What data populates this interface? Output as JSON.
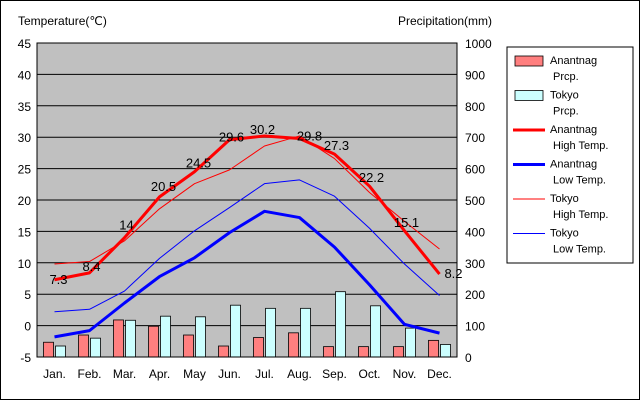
{
  "chart_data": {
    "type": "bar+line",
    "left_axis_label": "Temperature(℃)",
    "right_axis_label": "Precipitation(mm)",
    "left_ylim": [
      -5,
      45
    ],
    "left_ticks": [
      -5,
      0,
      5,
      10,
      15,
      20,
      25,
      30,
      35,
      40,
      45
    ],
    "right_ylim": [
      0,
      1000
    ],
    "right_ticks": [
      0,
      100,
      200,
      300,
      400,
      500,
      600,
      700,
      800,
      900,
      1000
    ],
    "categories": [
      "Jan.",
      "Feb.",
      "Mar.",
      "Apr.",
      "May",
      "Jun.",
      "Jul.",
      "Aug.",
      "Sep.",
      "Oct.",
      "Nov.",
      "Dec."
    ],
    "grid": true,
    "legend_position": "right",
    "bars": [
      {
        "name": "Anantnag Prcp.",
        "color": "#ff7f7f",
        "values": [
          47,
          70,
          118,
          98,
          70,
          35,
          62,
          77,
          33,
          33,
          33,
          53
        ]
      },
      {
        "name": "Tokyo Prcp.",
        "color": "#ccffff",
        "values": [
          35,
          60,
          117,
          130,
          128,
          165,
          155,
          155,
          208,
          163,
          92,
          40
        ]
      }
    ],
    "lines": [
      {
        "name": "Anantnag High Temp.",
        "color": "#ff0000",
        "width": 3,
        "values": [
          7.3,
          8.4,
          14,
          20.5,
          24.5,
          29.6,
          30.2,
          29.8,
          27.3,
          22.2,
          15.1,
          8.2
        ],
        "labels": [
          "7.3",
          "8.4",
          "14",
          "20.5",
          "24.5",
          "29.6",
          "30.2",
          "29.8",
          "27.3",
          "22.2",
          "15.1",
          "8.2"
        ]
      },
      {
        "name": "Anantnag Low Temp.",
        "color": "#0000ff",
        "width": 3,
        "values": [
          -1.8,
          -0.8,
          3.6,
          7.8,
          10.8,
          14.8,
          18.2,
          17.2,
          12.5,
          6.5,
          0.2,
          -1.2
        ]
      },
      {
        "name": "Tokyo High Temp.",
        "color": "#ff0000",
        "width": 1,
        "values": [
          9.8,
          10.2,
          13.5,
          18.6,
          22.6,
          24.8,
          28.6,
          30.2,
          26.6,
          21.2,
          16.6,
          12.2
        ]
      },
      {
        "name": "Tokyo Low Temp.",
        "color": "#0000ff",
        "width": 1,
        "values": [
          2.2,
          2.6,
          5.5,
          10.7,
          15.1,
          18.8,
          22.6,
          23.2,
          20.6,
          15.5,
          9.8,
          4.8
        ]
      }
    ],
    "legend": [
      {
        "line1": "Anantnag",
        "line2": "Prcp.",
        "kind": "bar",
        "color": "#ff7f7f"
      },
      {
        "line1": "Tokyo",
        "line2": "Prcp.",
        "kind": "bar",
        "color": "#ccffff"
      },
      {
        "line1": "Anantnag",
        "line2": "High Temp.",
        "kind": "line",
        "color": "#ff0000",
        "width": 3
      },
      {
        "line1": "Anantnag",
        "line2": "Low Temp.",
        "kind": "line",
        "color": "#0000ff",
        "width": 3
      },
      {
        "line1": "Tokyo",
        "line2": "High Temp.",
        "kind": "line",
        "color": "#ff0000",
        "width": 1
      },
      {
        "line1": "Tokyo",
        "line2": "Low Temp.",
        "kind": "line",
        "color": "#0000ff",
        "width": 1
      }
    ]
  }
}
